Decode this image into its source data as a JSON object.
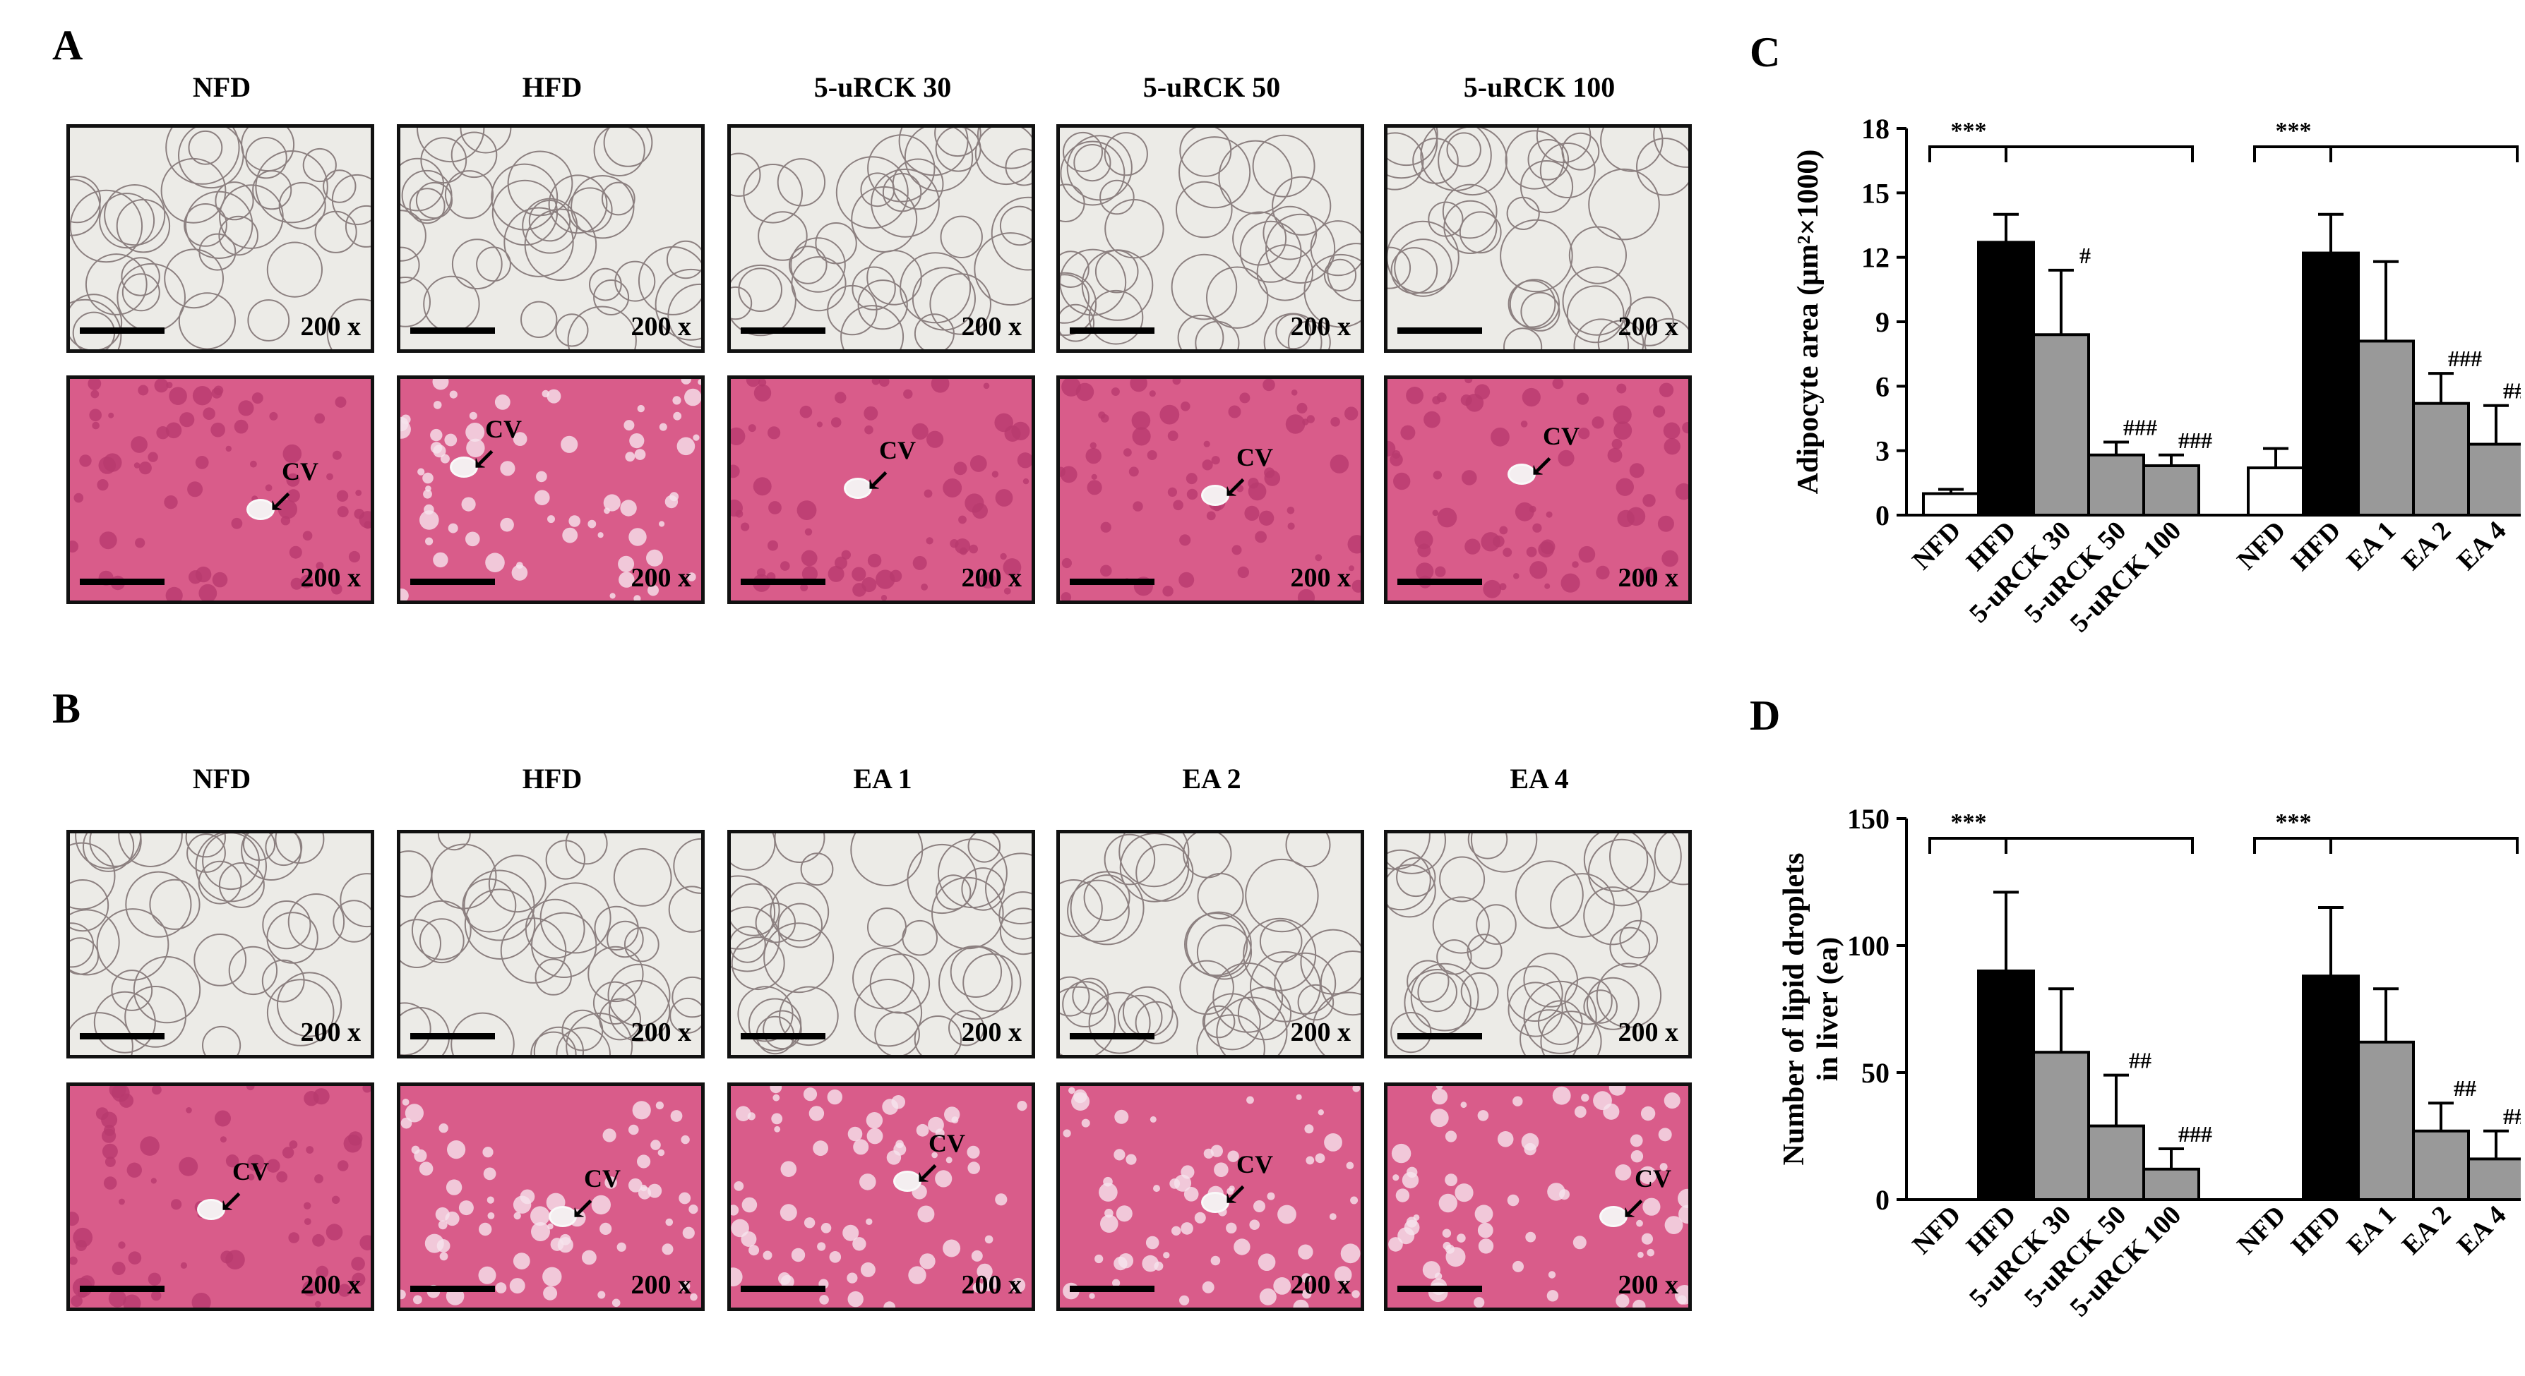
{
  "panels": {
    "A": "A",
    "B": "B",
    "C": "C",
    "D": "D"
  },
  "row_A_headers": [
    "NFD",
    "HFD",
    "5-uRCK 30",
    "5-uRCK 50",
    "5-uRCK 100"
  ],
  "row_B_headers": [
    "NFD",
    "HFD",
    "EA 1",
    "EA 2",
    "EA 4"
  ],
  "magnification": "200 x",
  "cv_label": "CV",
  "colors": {
    "bar_black": "#000000",
    "bar_gray": "#999999",
    "bar_white": "#ffffff",
    "adipose": "#ecebe7",
    "liver": "#d95c8a"
  },
  "chart_data": [
    {
      "panel": "C",
      "type": "bar",
      "ylabel": "Adipocyte area (μm²×1000)",
      "ylim": [
        0,
        18
      ],
      "yticks": [
        0,
        3,
        6,
        9,
        12,
        15,
        18
      ],
      "groups": [
        {
          "categories": [
            "NFD",
            "HFD",
            "5-uRCK 30",
            "5-uRCK 50",
            "5-uRCK 100"
          ],
          "values": [
            1.0,
            12.7,
            8.4,
            2.8,
            2.3
          ],
          "errors": [
            0.2,
            1.3,
            3.0,
            0.6,
            0.5
          ],
          "fills": [
            "white",
            "black",
            "gray",
            "gray",
            "gray"
          ],
          "annotations": [
            "",
            "",
            "#",
            "###",
            "###"
          ],
          "significance": "***"
        },
        {
          "categories": [
            "NFD",
            "HFD",
            "EA 1",
            "EA 2",
            "EA 4"
          ],
          "values": [
            2.2,
            12.2,
            8.1,
            5.2,
            3.3
          ],
          "errors": [
            0.9,
            1.8,
            3.7,
            1.4,
            1.8
          ],
          "fills": [
            "white",
            "black",
            "gray",
            "gray",
            "gray"
          ],
          "annotations": [
            "",
            "",
            "",
            "###",
            "###"
          ],
          "significance": "***"
        }
      ]
    },
    {
      "panel": "D",
      "type": "bar",
      "ylabel": "Number of lipid droplets in liver (ea)",
      "ylim": [
        0,
        150
      ],
      "yticks": [
        0,
        50,
        100,
        150
      ],
      "groups": [
        {
          "categories": [
            "NFD",
            "HFD",
            "5-uRCK 30",
            "5-uRCK 50",
            "5-uRCK 100"
          ],
          "values": [
            0,
            90,
            58,
            29,
            12
          ],
          "errors": [
            0,
            31,
            25,
            20,
            8
          ],
          "fills": [
            "white",
            "black",
            "gray",
            "gray",
            "gray"
          ],
          "annotations": [
            "",
            "",
            "",
            "##",
            "###"
          ],
          "significance": "***"
        },
        {
          "categories": [
            "NFD",
            "HFD",
            "EA 1",
            "EA 2",
            "EA 4"
          ],
          "values": [
            0,
            88,
            62,
            27,
            16
          ],
          "errors": [
            0,
            27,
            21,
            11,
            11
          ],
          "fills": [
            "white",
            "black",
            "gray",
            "gray",
            "gray"
          ],
          "annotations": [
            "",
            "",
            "",
            "##",
            "###"
          ],
          "significance": "***"
        }
      ]
    }
  ]
}
